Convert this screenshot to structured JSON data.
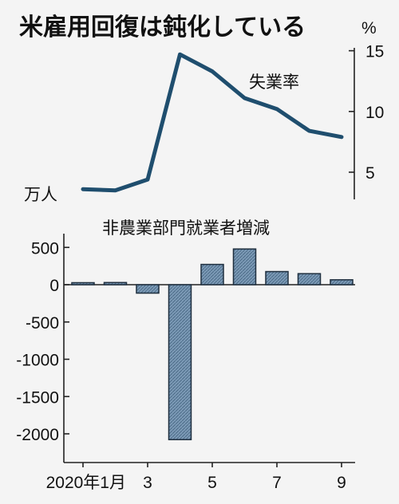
{
  "title": "米雇用回復は鈍化している",
  "colors": {
    "line": "#1f4e6e",
    "bar_fill": "#6f8fae",
    "bar_edge": "#1f2f3f",
    "background": "#f4f4f4"
  },
  "chart_data": [
    {
      "type": "line",
      "series_label": "失業率",
      "unit_label": "%",
      "y_ticks": [
        "5",
        "10",
        "15"
      ],
      "ylim": [
        2.5,
        15.5
      ],
      "x_positions": [
        1,
        2,
        3,
        4,
        5,
        6,
        7,
        8,
        9
      ],
      "values": [
        3.6,
        3.5,
        4.4,
        14.7,
        13.3,
        11.1,
        10.2,
        8.4,
        7.9
      ],
      "y_axis_side": "right",
      "grid": false
    },
    {
      "type": "bar",
      "title": "非農業部門就業者増減",
      "unit_label": "万人",
      "x_positions": [
        1,
        2,
        3,
        4,
        5,
        6,
        7,
        8,
        9
      ],
      "x_tick_positions": [
        1,
        3,
        5,
        7,
        9
      ],
      "x_tick_labels": [
        "2020年1月",
        "3",
        "5",
        "7",
        "9"
      ],
      "values": [
        27,
        29,
        -113,
        -2078,
        272,
        479,
        176,
        148,
        66
      ],
      "y_ticks": [
        "500",
        "0",
        "-500",
        "-1000",
        "-1500",
        "-2000"
      ],
      "ylim": [
        -2300,
        500
      ],
      "y_axis_side": "left",
      "grid": false
    }
  ]
}
